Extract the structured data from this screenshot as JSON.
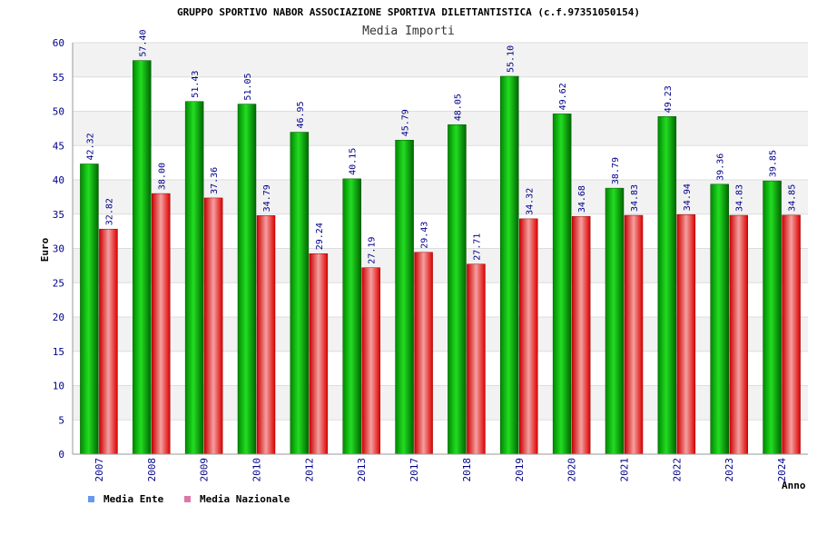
{
  "chart_data": {
    "type": "bar",
    "title": "GRUPPO SPORTIVO NABOR ASSOCIAZIONE SPORTIVA DILETTANTISTICA (c.f.97351050154)",
    "subtitle": "Media Importi",
    "xlabel": "Anno",
    "ylabel": "Euro",
    "ylim": [
      0,
      60
    ],
    "yticks": [
      0,
      5,
      10,
      15,
      20,
      25,
      30,
      35,
      40,
      45,
      50,
      55,
      60
    ],
    "grid": true,
    "legend_position": "bottom-left",
    "categories": [
      "2007",
      "2008",
      "2009",
      "2010",
      "2012",
      "2013",
      "2017",
      "2018",
      "2019",
      "2020",
      "2021",
      "2022",
      "2023",
      "2024"
    ],
    "series": [
      {
        "name": "Media Ente",
        "color": "#00b000",
        "legend_color": "#6699ee",
        "values": [
          42.32,
          57.4,
          51.43,
          51.05,
          46.95,
          40.15,
          45.79,
          48.05,
          55.1,
          49.62,
          38.79,
          49.23,
          39.36,
          39.85
        ],
        "labels": [
          "42.32",
          "57.40",
          "51.43",
          "51.05",
          "46.95",
          "40.15",
          "45.79",
          "48.05",
          "55.10",
          "49.62",
          "38.79",
          "49.23",
          "39.36",
          "39.85"
        ]
      },
      {
        "name": "Media Nazionale",
        "color": "#ee2222",
        "legend_color": "#dd77aa",
        "values": [
          32.82,
          38.0,
          37.36,
          34.79,
          29.24,
          27.19,
          29.43,
          27.71,
          34.32,
          34.68,
          34.83,
          34.94,
          34.83,
          34.85
        ],
        "labels": [
          "32.82",
          "38.00",
          "37.36",
          "34.79",
          "29.24",
          "27.19",
          "29.43",
          "27.71",
          "34.32",
          "34.68",
          "34.83",
          "34.94",
          "34.83",
          "34.85"
        ]
      }
    ]
  }
}
